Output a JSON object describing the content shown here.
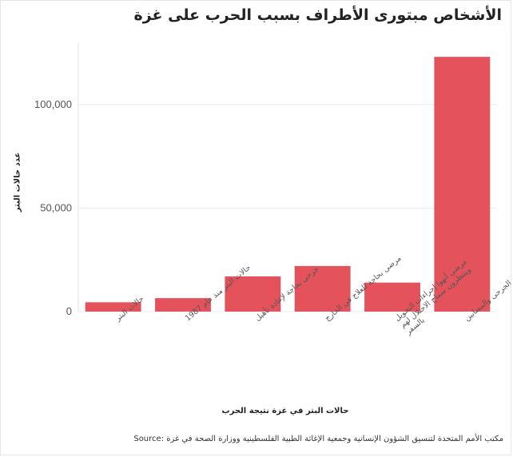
{
  "chart_data": {
    "type": "bar",
    "title": "الأشخاص مبتورى الأطراف بسبب الحرب على غزة",
    "xlabel": "حالات البتر في غزة نتيجة الحرب",
    "ylabel": "عدد حالات البتر",
    "categories": [
      "حالات البتر",
      "حالات البتر منذ عام 1987",
      "جرحى بحاجة لإعادة تأهيل",
      "مرضى بحاجة للعلاج في الخارج",
      "مرضى أنهوا إجراءات التحويل وينتظرون سماح الاحتلال لهم بالسفر",
      "عدد الجرحى والمصابين"
    ],
    "category_lines": [
      [
        "حالات البتر"
      ],
      [
        "حالات البتر منذ عام 1987"
      ],
      [
        "جرحى بحاجة لإعادة تأهيل"
      ],
      [
        "مرضى بحاجة للعلاج في الخارج"
      ],
      [
        "مرضى أنهوا إجراءات التحويل",
        "وينتظرون سماح الاحتلال لهم",
        "بالسفر"
      ],
      [
        "عدد الجرحى والمصابين"
      ]
    ],
    "values": [
      4500,
      6500,
      17000,
      22000,
      14000,
      123000
    ],
    "ylim": [
      0,
      130000
    ],
    "yticks": [
      0,
      50000,
      100000
    ],
    "ytick_labels": [
      "0",
      "50,000",
      "100,000"
    ],
    "grid": true,
    "bar_color": "#e4535b"
  },
  "source": "مكتب الأمم المتحدة لتنسيق الشؤون الإنسانية وجمعية الإغاثة الطبية الفلسطينية ووزارة الصحة في غزة :Source"
}
